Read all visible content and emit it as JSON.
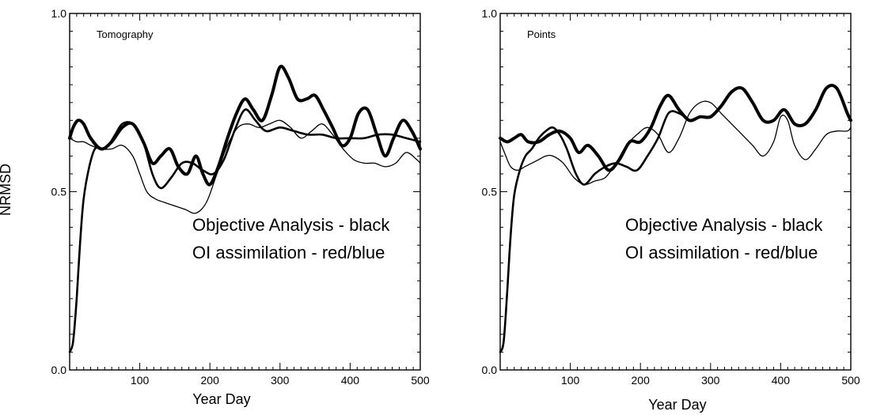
{
  "figure": {
    "ylabel": "NRMSD"
  },
  "chart_data": [
    {
      "type": "line",
      "title": "",
      "panel_label": "Tomography",
      "xlabel": "Year Day",
      "ylabel": "NRMSD",
      "xlim": [
        0,
        500
      ],
      "ylim": [
        0.0,
        1.0
      ],
      "xticks": [
        100,
        200,
        300,
        400,
        500
      ],
      "xtick_labels": [
        "100",
        "200",
        "300",
        "400",
        "500"
      ],
      "yticks": [
        0.0,
        0.5,
        1.0
      ],
      "ytick_labels": [
        "0.0",
        "0.5",
        "1.0"
      ],
      "grid": false,
      "annotations": [
        "Objective Analysis - black",
        "OI assimilation - red/blue"
      ],
      "series": [
        {
          "weight": "thick",
          "x": [
            0,
            5,
            12,
            20,
            30,
            45,
            60,
            75,
            90,
            105,
            118,
            130,
            143,
            155,
            168,
            180,
            190,
            200,
            212,
            225,
            238,
            250,
            262,
            275,
            288,
            300,
            312,
            325,
            338,
            350,
            362,
            375,
            388,
            400,
            412,
            425,
            438,
            450,
            462,
            475,
            488,
            500
          ],
          "y": [
            0.65,
            0.68,
            0.7,
            0.69,
            0.65,
            0.62,
            0.64,
            0.68,
            0.69,
            0.64,
            0.58,
            0.6,
            0.62,
            0.57,
            0.55,
            0.6,
            0.55,
            0.52,
            0.57,
            0.65,
            0.72,
            0.76,
            0.73,
            0.7,
            0.77,
            0.85,
            0.82,
            0.76,
            0.76,
            0.77,
            0.73,
            0.68,
            0.63,
            0.65,
            0.72,
            0.73,
            0.66,
            0.6,
            0.65,
            0.7,
            0.67,
            0.62
          ]
        },
        {
          "weight": "medium",
          "x": [
            0,
            5,
            10,
            15,
            20,
            28,
            36,
            45,
            55,
            65,
            75,
            90,
            105,
            118,
            130,
            145,
            160,
            175,
            190,
            205,
            220,
            235,
            250,
            265,
            280,
            300,
            320,
            340,
            360,
            380,
            400,
            420,
            440,
            460,
            480,
            500
          ],
          "y": [
            0.05,
            0.08,
            0.2,
            0.36,
            0.48,
            0.57,
            0.62,
            0.62,
            0.63,
            0.66,
            0.69,
            0.69,
            0.64,
            0.55,
            0.51,
            0.54,
            0.58,
            0.58,
            0.56,
            0.55,
            0.59,
            0.67,
            0.73,
            0.7,
            0.67,
            0.68,
            0.67,
            0.66,
            0.66,
            0.65,
            0.65,
            0.65,
            0.66,
            0.66,
            0.65,
            0.64
          ]
        },
        {
          "weight": "thin",
          "x": [
            0,
            10,
            20,
            30,
            45,
            60,
            75,
            90,
            100,
            110,
            122,
            135,
            150,
            165,
            180,
            195,
            210,
            225,
            240,
            255,
            270,
            285,
            300,
            315,
            330,
            345,
            360,
            375,
            390,
            405,
            420,
            435,
            450,
            465,
            480,
            495,
            500
          ],
          "y": [
            0.65,
            0.64,
            0.64,
            0.63,
            0.62,
            0.62,
            0.63,
            0.6,
            0.55,
            0.5,
            0.48,
            0.47,
            0.46,
            0.45,
            0.44,
            0.47,
            0.55,
            0.63,
            0.68,
            0.69,
            0.68,
            0.69,
            0.7,
            0.68,
            0.65,
            0.67,
            0.69,
            0.66,
            0.62,
            0.59,
            0.58,
            0.58,
            0.57,
            0.58,
            0.61,
            0.59,
            0.58
          ]
        }
      ]
    },
    {
      "type": "line",
      "title": "",
      "panel_label": "Points",
      "xlabel": "Year Day",
      "ylabel": "",
      "xlim": [
        0,
        500
      ],
      "ylim": [
        0.0,
        1.0
      ],
      "xticks": [
        100,
        200,
        300,
        400,
        500
      ],
      "xtick_labels": [
        "100",
        "200",
        "300",
        "400",
        "500"
      ],
      "yticks": [
        0.0,
        0.5,
        1.0
      ],
      "ytick_labels": [
        "0.0",
        "0.5",
        "1.0"
      ],
      "grid": false,
      "annotations": [
        "Objective Analysis - black",
        "OI assimilation - red/blue"
      ],
      "series": [
        {
          "weight": "thick",
          "x": [
            0,
            10,
            20,
            30,
            40,
            55,
            70,
            85,
            100,
            112,
            125,
            140,
            155,
            170,
            185,
            200,
            215,
            228,
            240,
            255,
            270,
            285,
            300,
            315,
            330,
            345,
            360,
            375,
            390,
            405,
            420,
            435,
            450,
            465,
            480,
            495,
            500
          ],
          "y": [
            0.65,
            0.64,
            0.65,
            0.66,
            0.64,
            0.64,
            0.66,
            0.67,
            0.65,
            0.61,
            0.63,
            0.6,
            0.56,
            0.59,
            0.64,
            0.64,
            0.68,
            0.74,
            0.77,
            0.73,
            0.7,
            0.71,
            0.71,
            0.74,
            0.78,
            0.79,
            0.75,
            0.7,
            0.7,
            0.73,
            0.69,
            0.69,
            0.73,
            0.79,
            0.79,
            0.72,
            0.7
          ]
        },
        {
          "weight": "medium",
          "x": [
            0,
            5,
            10,
            15,
            20,
            28,
            36,
            45,
            55,
            65,
            75,
            85,
            95,
            108,
            120,
            135,
            150,
            165,
            180,
            195,
            210,
            225,
            240,
            255,
            270
          ],
          "y": [
            0.05,
            0.08,
            0.22,
            0.38,
            0.49,
            0.56,
            0.6,
            0.62,
            0.65,
            0.67,
            0.68,
            0.66,
            0.62,
            0.55,
            0.52,
            0.55,
            0.57,
            0.58,
            0.57,
            0.56,
            0.6,
            0.65,
            0.72,
            0.72,
            0.7
          ]
        },
        {
          "weight": "thin",
          "x": [
            0,
            8,
            15,
            25,
            35,
            45,
            55,
            65,
            75,
            90,
            105,
            120,
            135,
            150,
            165,
            180,
            195,
            210,
            225,
            240,
            255,
            270,
            285,
            300,
            315,
            330,
            345,
            360,
            375,
            390,
            400,
            410,
            420,
            435,
            450,
            465,
            480,
            495,
            500
          ],
          "y": [
            0.64,
            0.6,
            0.57,
            0.56,
            0.57,
            0.58,
            0.59,
            0.6,
            0.6,
            0.58,
            0.54,
            0.52,
            0.53,
            0.54,
            0.58,
            0.63,
            0.66,
            0.68,
            0.66,
            0.61,
            0.65,
            0.72,
            0.75,
            0.75,
            0.72,
            0.69,
            0.66,
            0.63,
            0.6,
            0.64,
            0.71,
            0.7,
            0.63,
            0.59,
            0.62,
            0.66,
            0.67,
            0.67,
            0.68
          ]
        }
      ]
    }
  ],
  "style": {
    "line_color": "#000000",
    "axis_color": "#000000",
    "background": "#ffffff"
  }
}
